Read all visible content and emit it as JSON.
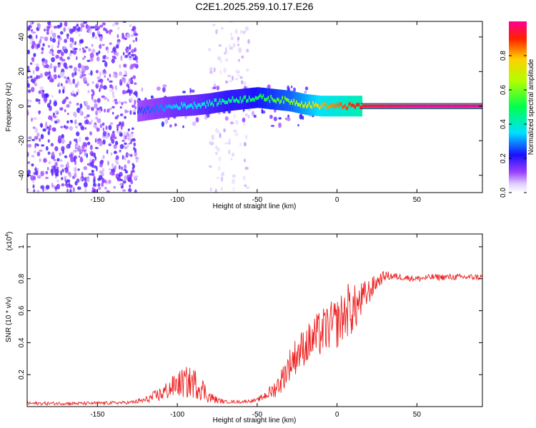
{
  "title": "C2E1.2025.259.10.17.E26",
  "chart_data": [
    {
      "type": "heatmap",
      "name": "spectrogram",
      "xlabel": "Height of straight line (km)",
      "ylabel": "Frequency (Hz)",
      "xlim": [
        -194,
        91
      ],
      "ylim": [
        -50,
        49
      ],
      "xticks": [
        -150,
        -100,
        -50,
        0,
        50
      ],
      "yticks": [
        -40,
        -20,
        0,
        20,
        40
      ],
      "colorbar": {
        "label": "Normalized spectral amplitude",
        "range": [
          0,
          1
        ],
        "ticks": [
          0.0,
          0.2,
          0.4,
          0.6,
          0.8
        ]
      },
      "ridge": {
        "x": [
          -125,
          -110,
          -100,
          -90,
          -80,
          -70,
          -60,
          -50,
          -40,
          -30,
          -20,
          -10,
          0,
          10,
          20,
          50,
          91
        ],
        "y": [
          -3,
          -1,
          0,
          0.5,
          1.5,
          3,
          4,
          5,
          4,
          3,
          1,
          0,
          0,
          0,
          0,
          0,
          0
        ],
        "amplitude": [
          0.25,
          0.3,
          0.35,
          0.35,
          0.4,
          0.45,
          0.45,
          0.5,
          0.55,
          0.6,
          0.7,
          0.8,
          0.85,
          0.9,
          0.95,
          1.0,
          1.0
        ]
      },
      "noise_regions": [
        {
          "x": [
            -194,
            -125
          ],
          "y": [
            -50,
            49
          ],
          "amplitude": 0.12
        },
        {
          "x": [
            -80,
            -55
          ],
          "y": [
            -50,
            49
          ],
          "amplitude": 0.05
        },
        {
          "x": [
            -125,
            -15
          ],
          "y": [
            -12,
            12
          ],
          "amplitude": 0.15
        }
      ]
    },
    {
      "type": "line",
      "name": "snr",
      "xlabel": "Height of straight line (km)",
      "ylabel": "SNR (10 * v/v)",
      "y_multiplier": "(x10",
      "y_multiplier_exp": "4",
      "xlim": [
        -194,
        91
      ],
      "ylim": [
        0,
        1.08
      ],
      "xticks": [
        -150,
        -100,
        -50,
        0,
        50
      ],
      "yticks": [
        0.2,
        0.4,
        0.6,
        0.8,
        1.0
      ],
      "series": [
        {
          "name": "SNR",
          "color": "#ee2222",
          "x": [
            -194,
            -160,
            -130,
            -120,
            -110,
            -100,
            -95,
            -90,
            -85,
            -80,
            -75,
            -70,
            -60,
            -50,
            -45,
            -40,
            -35,
            -30,
            -25,
            -20,
            -15,
            -10,
            -5,
            0,
            5,
            8,
            10,
            15,
            20,
            25,
            30,
            40,
            50,
            60,
            70,
            80,
            91
          ],
          "y": [
            0.02,
            0.02,
            0.025,
            0.04,
            0.08,
            0.14,
            0.15,
            0.15,
            0.12,
            0.06,
            0.04,
            0.03,
            0.03,
            0.04,
            0.07,
            0.1,
            0.16,
            0.26,
            0.33,
            0.38,
            0.42,
            0.46,
            0.5,
            0.52,
            0.58,
            0.62,
            0.6,
            0.66,
            0.72,
            0.78,
            0.82,
            0.81,
            0.8,
            0.81,
            0.81,
            0.81,
            0.81
          ],
          "noise": [
            0.01,
            0.01,
            0.01,
            0.02,
            0.05,
            0.08,
            0.1,
            0.1,
            0.08,
            0.04,
            0.02,
            0.01,
            0.01,
            0.01,
            0.03,
            0.05,
            0.08,
            0.1,
            0.12,
            0.12,
            0.14,
            0.15,
            0.15,
            0.16,
            0.16,
            0.18,
            0.16,
            0.12,
            0.08,
            0.05,
            0.03,
            0.02,
            0.02,
            0.02,
            0.02,
            0.02,
            0.02
          ]
        }
      ]
    }
  ]
}
